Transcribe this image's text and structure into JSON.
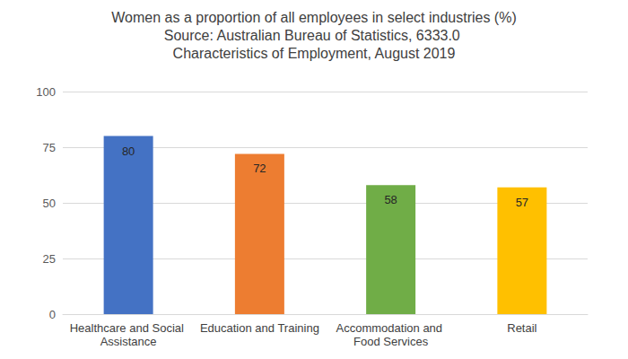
{
  "chart_data": {
    "type": "bar",
    "title": "Women as a proportion of all employees in select industries (%)",
    "subtitle": "Source: Australian Bureau of Statistics, 6333.0 Characteristics of Employment, August 2019",
    "categories": [
      "Healthcare and Social Assistance",
      "Education and Training",
      "Accommodation and Food Services",
      "Retail"
    ],
    "values": [
      80,
      72,
      58,
      57
    ],
    "colors": [
      "#4472c4",
      "#ed7d31",
      "#70ad47",
      "#ffc000"
    ],
    "ylim": [
      0,
      100
    ],
    "yticks": [
      0,
      25,
      50,
      75,
      100
    ],
    "grid": true,
    "data_labels": true
  }
}
